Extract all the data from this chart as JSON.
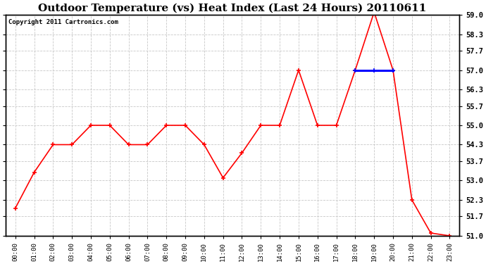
{
  "title": "Outdoor Temperature (vs) Heat Index (Last 24 Hours) 20110611",
  "copyright_text": "Copyright 2011 Cartronics.com",
  "hours": [
    "00:00",
    "01:00",
    "02:00",
    "03:00",
    "04:00",
    "05:00",
    "06:00",
    "07:00",
    "08:00",
    "09:00",
    "10:00",
    "11:00",
    "12:00",
    "13:00",
    "14:00",
    "15:00",
    "16:00",
    "17:00",
    "18:00",
    "19:00",
    "20:00",
    "21:00",
    "22:00",
    "23:00"
  ],
  "temp_values": [
    52.0,
    53.3,
    54.3,
    54.3,
    55.0,
    55.0,
    54.3,
    54.3,
    55.0,
    55.0,
    54.3,
    53.1,
    54.0,
    55.0,
    55.0,
    57.0,
    55.0,
    55.0,
    57.0,
    59.1,
    57.0,
    52.3,
    51.1,
    51.0
  ],
  "heat_values": [
    null,
    null,
    null,
    null,
    null,
    null,
    null,
    null,
    null,
    null,
    null,
    null,
    null,
    null,
    null,
    null,
    null,
    null,
    57.0,
    57.0,
    57.0,
    null,
    null,
    null
  ],
  "temp_color": "#FF0000",
  "heat_color": "#0000FF",
  "ylim_min": 51.0,
  "ylim_max": 59.0,
  "yticks": [
    51.0,
    51.7,
    52.3,
    53.0,
    53.7,
    54.3,
    55.0,
    55.7,
    56.3,
    57.0,
    57.7,
    58.3,
    59.0
  ],
  "background_color": "#FFFFFF",
  "plot_bg_color": "#FFFFFF",
  "grid_color": "#C8C8C8",
  "title_fontsize": 11,
  "copyright_fontsize": 6.5,
  "marker_size": 4,
  "linewidth": 1.2
}
